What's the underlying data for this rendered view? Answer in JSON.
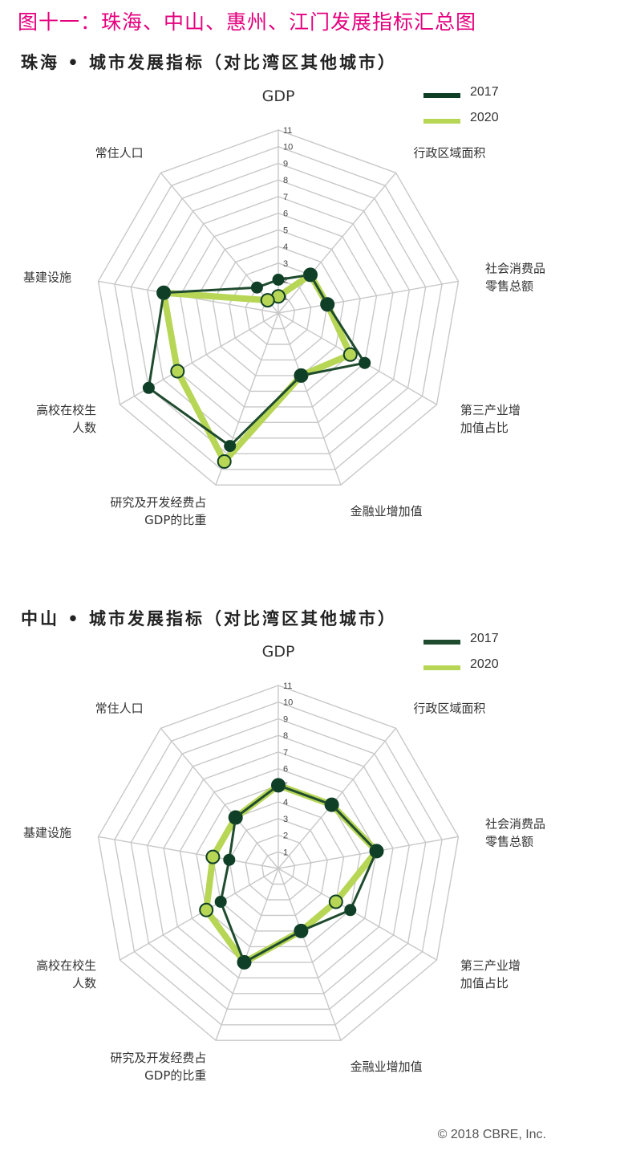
{
  "page": {
    "main_title": "图十一：珠海、中山、惠州、江门发展指标汇总图",
    "copyright": "© 2018 CBRE, Inc."
  },
  "colors": {
    "title": "#e5007e",
    "series_2017": "#1f4b2e",
    "series_2020": "#b7d656",
    "marker_2017": "#0f3f26",
    "grid": "#c8c8c8"
  },
  "chart_data": [
    {
      "type": "radar",
      "title": "珠海 • 城市发展指标（对比湾区其他城市）",
      "axes": [
        "GDP",
        "行政区域面积",
        "社会消费品零售总额",
        "第三产业增加值占比",
        "金融业增加值",
        "研究及开发经费占GDP的比重",
        "高校在校生人数",
        "基建设施",
        "常住人口"
      ],
      "axis_labels": [
        [
          "GDP"
        ],
        [
          "行政区域面积"
        ],
        [
          "社会消费品",
          "零售总额"
        ],
        [
          "第三产业增",
          "加值占比"
        ],
        [
          "金融业增加值"
        ],
        [
          "研究及开发经费占",
          "GDP的比重"
        ],
        [
          "高校在校生",
          "人数"
        ],
        [
          "基建设施"
        ],
        [
          "常住人口"
        ]
      ],
      "rlim": [
        0,
        11
      ],
      "ticks": [
        "1",
        "2",
        "3",
        "4",
        "5",
        "6",
        "7",
        "8",
        "9",
        "10",
        "11"
      ],
      "series": [
        {
          "name": "2017",
          "values": [
            2,
            3,
            3,
            6,
            4,
            8.5,
            9,
            7,
            2
          ]
        },
        {
          "name": "2020",
          "values": [
            1,
            3,
            3,
            5,
            4,
            9.5,
            7,
            7,
            1
          ]
        }
      ]
    },
    {
      "type": "radar",
      "title": "中山 • 城市发展指标（对比湾区其他城市）",
      "axes": [
        "GDP",
        "行政区域面积",
        "社会消费品零售总额",
        "第三产业增加值占比",
        "金融业增加值",
        "研究及开发经费占GDP的比重",
        "高校在校生人数",
        "基建设施",
        "常住人口"
      ],
      "axis_labels": [
        [
          "GDP"
        ],
        [
          "行政区域面积"
        ],
        [
          "社会消费品",
          "零售总额"
        ],
        [
          "第三产业增",
          "加值占比"
        ],
        [
          "金融业增加值"
        ],
        [
          "研究及开发经费占",
          "GDP的比重"
        ],
        [
          "高校在校生",
          "人数"
        ],
        [
          "基建设施"
        ],
        [
          "常住人口"
        ]
      ],
      "rlim": [
        0,
        11
      ],
      "ticks": [
        "1",
        "2",
        "3",
        "4",
        "5",
        "6",
        "7",
        "8",
        "9",
        "10",
        "11"
      ],
      "series": [
        {
          "name": "2017",
          "values": [
            5,
            5,
            6,
            5,
            4,
            6,
            4,
            3,
            4
          ]
        },
        {
          "name": "2020",
          "values": [
            5,
            5,
            6,
            4,
            4,
            6,
            5,
            4,
            4
          ]
        }
      ]
    }
  ]
}
